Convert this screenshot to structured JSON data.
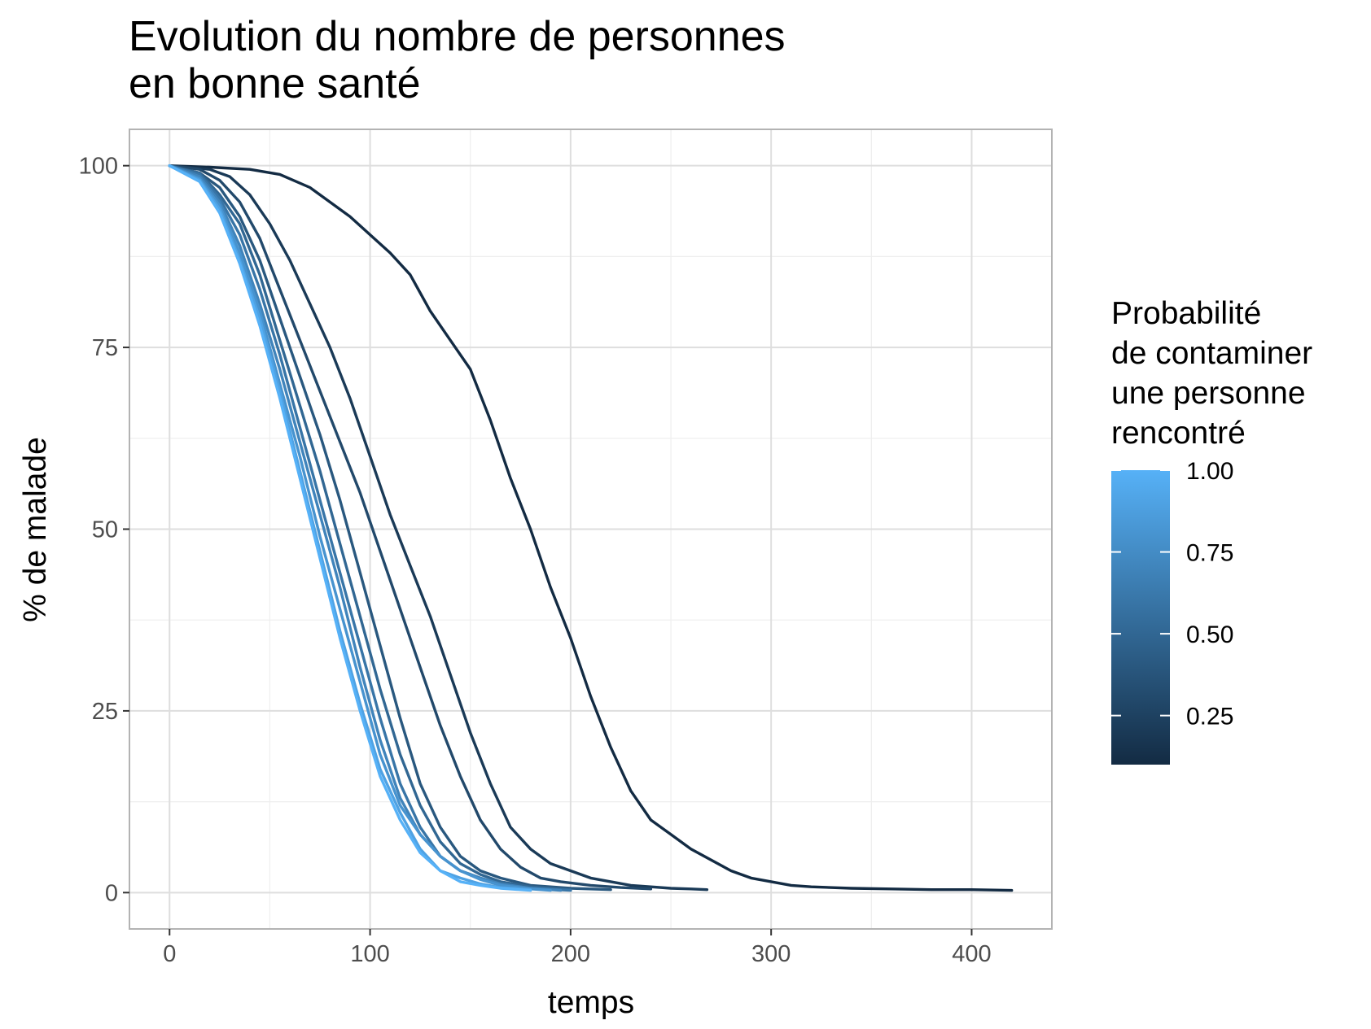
{
  "chart_data": {
    "type": "line",
    "title_lines": [
      "Evolution du nombre de personnes",
      "en bonne santé"
    ],
    "xlabel": "temps",
    "ylabel": "% de malade",
    "xlim": [
      -20,
      440
    ],
    "ylim": [
      -5,
      105
    ],
    "x_ticks": [
      0,
      100,
      200,
      300,
      400
    ],
    "y_ticks": [
      0,
      25,
      50,
      75,
      100
    ],
    "grid": true,
    "legend": {
      "position": "right",
      "title_lines": [
        "Probabilité",
        "de contaminer",
        "une personne",
        "rencontré"
      ],
      "range": [
        0.1,
        1.0
      ],
      "ticks": [
        0.25,
        0.5,
        0.75,
        1.0
      ],
      "tick_labels": [
        "0.25",
        "0.50",
        "0.75",
        "1.00"
      ],
      "color_low": "#132B43",
      "color_high": "#56B1F7"
    },
    "series": [
      {
        "prob": 0.1,
        "points": [
          [
            0,
            100
          ],
          [
            20,
            99.8
          ],
          [
            40,
            99.5
          ],
          [
            55,
            98.8
          ],
          [
            70,
            97
          ],
          [
            80,
            95
          ],
          [
            90,
            93
          ],
          [
            100,
            90.5
          ],
          [
            110,
            88
          ],
          [
            120,
            85
          ],
          [
            130,
            80
          ],
          [
            140,
            76
          ],
          [
            150,
            72
          ],
          [
            160,
            65
          ],
          [
            170,
            57
          ],
          [
            180,
            50
          ],
          [
            190,
            42
          ],
          [
            200,
            35
          ],
          [
            210,
            27
          ],
          [
            220,
            20
          ],
          [
            230,
            14
          ],
          [
            240,
            10
          ],
          [
            250,
            8
          ],
          [
            260,
            6
          ],
          [
            270,
            4.5
          ],
          [
            280,
            3
          ],
          [
            290,
            2
          ],
          [
            300,
            1.5
          ],
          [
            310,
            1
          ],
          [
            320,
            0.8
          ],
          [
            340,
            0.6
          ],
          [
            360,
            0.5
          ],
          [
            380,
            0.4
          ],
          [
            400,
            0.4
          ],
          [
            420,
            0.3
          ]
        ]
      },
      {
        "prob": 0.2,
        "points": [
          [
            0,
            100
          ],
          [
            20,
            99.5
          ],
          [
            30,
            98.5
          ],
          [
            40,
            96
          ],
          [
            50,
            92
          ],
          [
            60,
            87
          ],
          [
            70,
            81
          ],
          [
            80,
            75
          ],
          [
            90,
            68
          ],
          [
            100,
            60
          ],
          [
            110,
            52
          ],
          [
            120,
            45
          ],
          [
            130,
            38
          ],
          [
            140,
            30
          ],
          [
            150,
            22
          ],
          [
            160,
            15
          ],
          [
            170,
            9
          ],
          [
            180,
            6
          ],
          [
            190,
            4
          ],
          [
            200,
            3
          ],
          [
            210,
            2
          ],
          [
            220,
            1.5
          ],
          [
            230,
            1
          ],
          [
            240,
            0.8
          ],
          [
            250,
            0.6
          ],
          [
            260,
            0.5
          ],
          [
            268,
            0.4
          ]
        ]
      },
      {
        "prob": 0.3,
        "points": [
          [
            0,
            100
          ],
          [
            15,
            99.5
          ],
          [
            25,
            98
          ],
          [
            35,
            95
          ],
          [
            45,
            90
          ],
          [
            55,
            83
          ],
          [
            65,
            76
          ],
          [
            75,
            69
          ],
          [
            85,
            62
          ],
          [
            95,
            55
          ],
          [
            105,
            47
          ],
          [
            115,
            39
          ],
          [
            125,
            31
          ],
          [
            135,
            23
          ],
          [
            145,
            16
          ],
          [
            155,
            10
          ],
          [
            165,
            6
          ],
          [
            175,
            3.5
          ],
          [
            185,
            2
          ],
          [
            195,
            1.5
          ],
          [
            210,
            1
          ],
          [
            225,
            0.7
          ],
          [
            240,
            0.5
          ]
        ]
      },
      {
        "prob": 0.4,
        "points": [
          [
            0,
            100
          ],
          [
            15,
            99
          ],
          [
            25,
            97
          ],
          [
            35,
            93
          ],
          [
            45,
            87
          ],
          [
            55,
            79
          ],
          [
            65,
            71
          ],
          [
            75,
            63
          ],
          [
            85,
            54
          ],
          [
            95,
            44
          ],
          [
            105,
            34
          ],
          [
            115,
            24
          ],
          [
            125,
            15
          ],
          [
            135,
            9
          ],
          [
            145,
            5
          ],
          [
            155,
            3
          ],
          [
            165,
            2
          ],
          [
            180,
            1
          ],
          [
            200,
            0.6
          ],
          [
            220,
            0.4
          ]
        ]
      },
      {
        "prob": 0.5,
        "points": [
          [
            0,
            100
          ],
          [
            15,
            99
          ],
          [
            25,
            96
          ],
          [
            35,
            92
          ],
          [
            45,
            85
          ],
          [
            55,
            76
          ],
          [
            65,
            67
          ],
          [
            75,
            58
          ],
          [
            85,
            48
          ],
          [
            95,
            38
          ],
          [
            105,
            28
          ],
          [
            115,
            19
          ],
          [
            125,
            12
          ],
          [
            135,
            7
          ],
          [
            145,
            4
          ],
          [
            155,
            2.5
          ],
          [
            165,
            1.5
          ],
          [
            180,
            0.8
          ],
          [
            200,
            0.4
          ]
        ]
      },
      {
        "prob": 0.6,
        "points": [
          [
            0,
            100
          ],
          [
            15,
            98.8
          ],
          [
            25,
            95.5
          ],
          [
            35,
            90.5
          ],
          [
            45,
            83
          ],
          [
            55,
            74
          ],
          [
            65,
            64
          ],
          [
            75,
            54
          ],
          [
            85,
            44
          ],
          [
            95,
            34
          ],
          [
            105,
            24
          ],
          [
            115,
            15
          ],
          [
            125,
            9
          ],
          [
            135,
            5
          ],
          [
            145,
            3
          ],
          [
            155,
            2
          ],
          [
            165,
            1.2
          ],
          [
            180,
            0.6
          ],
          [
            200,
            0.3
          ]
        ]
      },
      {
        "prob": 0.7,
        "points": [
          [
            0,
            100
          ],
          [
            15,
            98.5
          ],
          [
            25,
            95
          ],
          [
            35,
            89
          ],
          [
            45,
            81
          ],
          [
            55,
            72
          ],
          [
            65,
            62
          ],
          [
            75,
            52
          ],
          [
            85,
            42
          ],
          [
            95,
            31
          ],
          [
            105,
            21
          ],
          [
            115,
            13
          ],
          [
            125,
            8
          ],
          [
            135,
            5
          ],
          [
            145,
            3
          ],
          [
            155,
            2
          ],
          [
            165,
            1.2
          ],
          [
            180,
            0.6
          ],
          [
            195,
            0.3
          ]
        ]
      },
      {
        "prob": 0.8,
        "points": [
          [
            0,
            100
          ],
          [
            15,
            98.2
          ],
          [
            25,
            94.5
          ],
          [
            35,
            88
          ],
          [
            45,
            80
          ],
          [
            55,
            70
          ],
          [
            65,
            60
          ],
          [
            75,
            49
          ],
          [
            85,
            39
          ],
          [
            95,
            29
          ],
          [
            105,
            19
          ],
          [
            115,
            12
          ],
          [
            125,
            8
          ],
          [
            135,
            5
          ],
          [
            145,
            3
          ],
          [
            155,
            1.8
          ],
          [
            165,
            1
          ],
          [
            180,
            0.5
          ],
          [
            190,
            0.3
          ]
        ]
      },
      {
        "prob": 0.9,
        "points": [
          [
            0,
            100
          ],
          [
            15,
            98
          ],
          [
            25,
            94
          ],
          [
            35,
            87
          ],
          [
            45,
            79
          ],
          [
            55,
            69
          ],
          [
            65,
            58
          ],
          [
            75,
            47
          ],
          [
            85,
            36
          ],
          [
            95,
            26
          ],
          [
            105,
            17
          ],
          [
            115,
            11
          ],
          [
            125,
            6
          ],
          [
            135,
            3
          ],
          [
            145,
            2
          ],
          [
            155,
            1.2
          ],
          [
            165,
            0.7
          ],
          [
            180,
            0.4
          ]
        ]
      },
      {
        "prob": 1.0,
        "points": [
          [
            0,
            100
          ],
          [
            15,
            97.8
          ],
          [
            25,
            93.5
          ],
          [
            35,
            86.5
          ],
          [
            45,
            78
          ],
          [
            55,
            68
          ],
          [
            65,
            57
          ],
          [
            75,
            46
          ],
          [
            85,
            35
          ],
          [
            95,
            25
          ],
          [
            105,
            16
          ],
          [
            115,
            10
          ],
          [
            125,
            5.5
          ],
          [
            135,
            3
          ],
          [
            145,
            1.5
          ],
          [
            155,
            1
          ],
          [
            165,
            0.6
          ],
          [
            180,
            0.3
          ]
        ]
      }
    ]
  }
}
